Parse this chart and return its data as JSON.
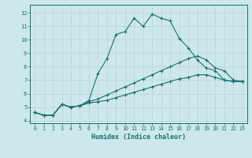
{
  "xlabel": "Humidex (Indice chaleur)",
  "background_color": "#cde8ec",
  "grid_color": "#b8d8dc",
  "line_color": "#1a6e6a",
  "xlim": [
    -0.5,
    23.5
  ],
  "ylim": [
    3.8,
    12.6
  ],
  "yticks": [
    4,
    5,
    6,
    7,
    8,
    9,
    10,
    11,
    12
  ],
  "xticks": [
    0,
    1,
    2,
    3,
    4,
    5,
    6,
    7,
    8,
    9,
    10,
    11,
    12,
    13,
    14,
    15,
    16,
    17,
    18,
    19,
    20,
    21,
    22,
    23
  ],
  "line1_x": [
    0,
    1,
    2,
    3,
    4,
    5,
    6,
    7,
    8,
    9,
    10,
    11,
    12,
    13,
    14,
    15,
    16,
    17,
    18,
    19,
    20,
    21,
    22,
    23
  ],
  "line1_y": [
    4.6,
    4.4,
    4.4,
    5.2,
    5.0,
    5.1,
    5.5,
    7.5,
    8.6,
    10.4,
    10.6,
    11.6,
    11.0,
    11.9,
    11.6,
    11.4,
    10.1,
    9.4,
    8.5,
    7.9,
    7.7,
    7.0,
    6.9,
    6.9
  ],
  "line2_x": [
    0,
    1,
    2,
    3,
    4,
    5,
    6,
    7,
    8,
    9,
    10,
    11,
    12,
    13,
    14,
    15,
    16,
    17,
    18,
    19,
    20,
    21,
    22,
    23
  ],
  "line2_y": [
    4.6,
    4.4,
    4.4,
    5.2,
    5.0,
    5.1,
    5.4,
    5.6,
    5.9,
    6.2,
    6.5,
    6.8,
    7.1,
    7.4,
    7.7,
    8.0,
    8.3,
    8.6,
    8.8,
    8.5,
    7.9,
    7.7,
    7.0,
    6.9
  ],
  "line3_x": [
    0,
    1,
    2,
    3,
    4,
    5,
    6,
    7,
    8,
    9,
    10,
    11,
    12,
    13,
    14,
    15,
    16,
    17,
    18,
    19,
    20,
    21,
    22,
    23
  ],
  "line3_y": [
    4.6,
    4.4,
    4.4,
    5.2,
    5.0,
    5.1,
    5.3,
    5.4,
    5.5,
    5.7,
    5.9,
    6.1,
    6.3,
    6.5,
    6.7,
    6.9,
    7.1,
    7.2,
    7.4,
    7.4,
    7.2,
    7.0,
    6.9,
    6.9
  ]
}
